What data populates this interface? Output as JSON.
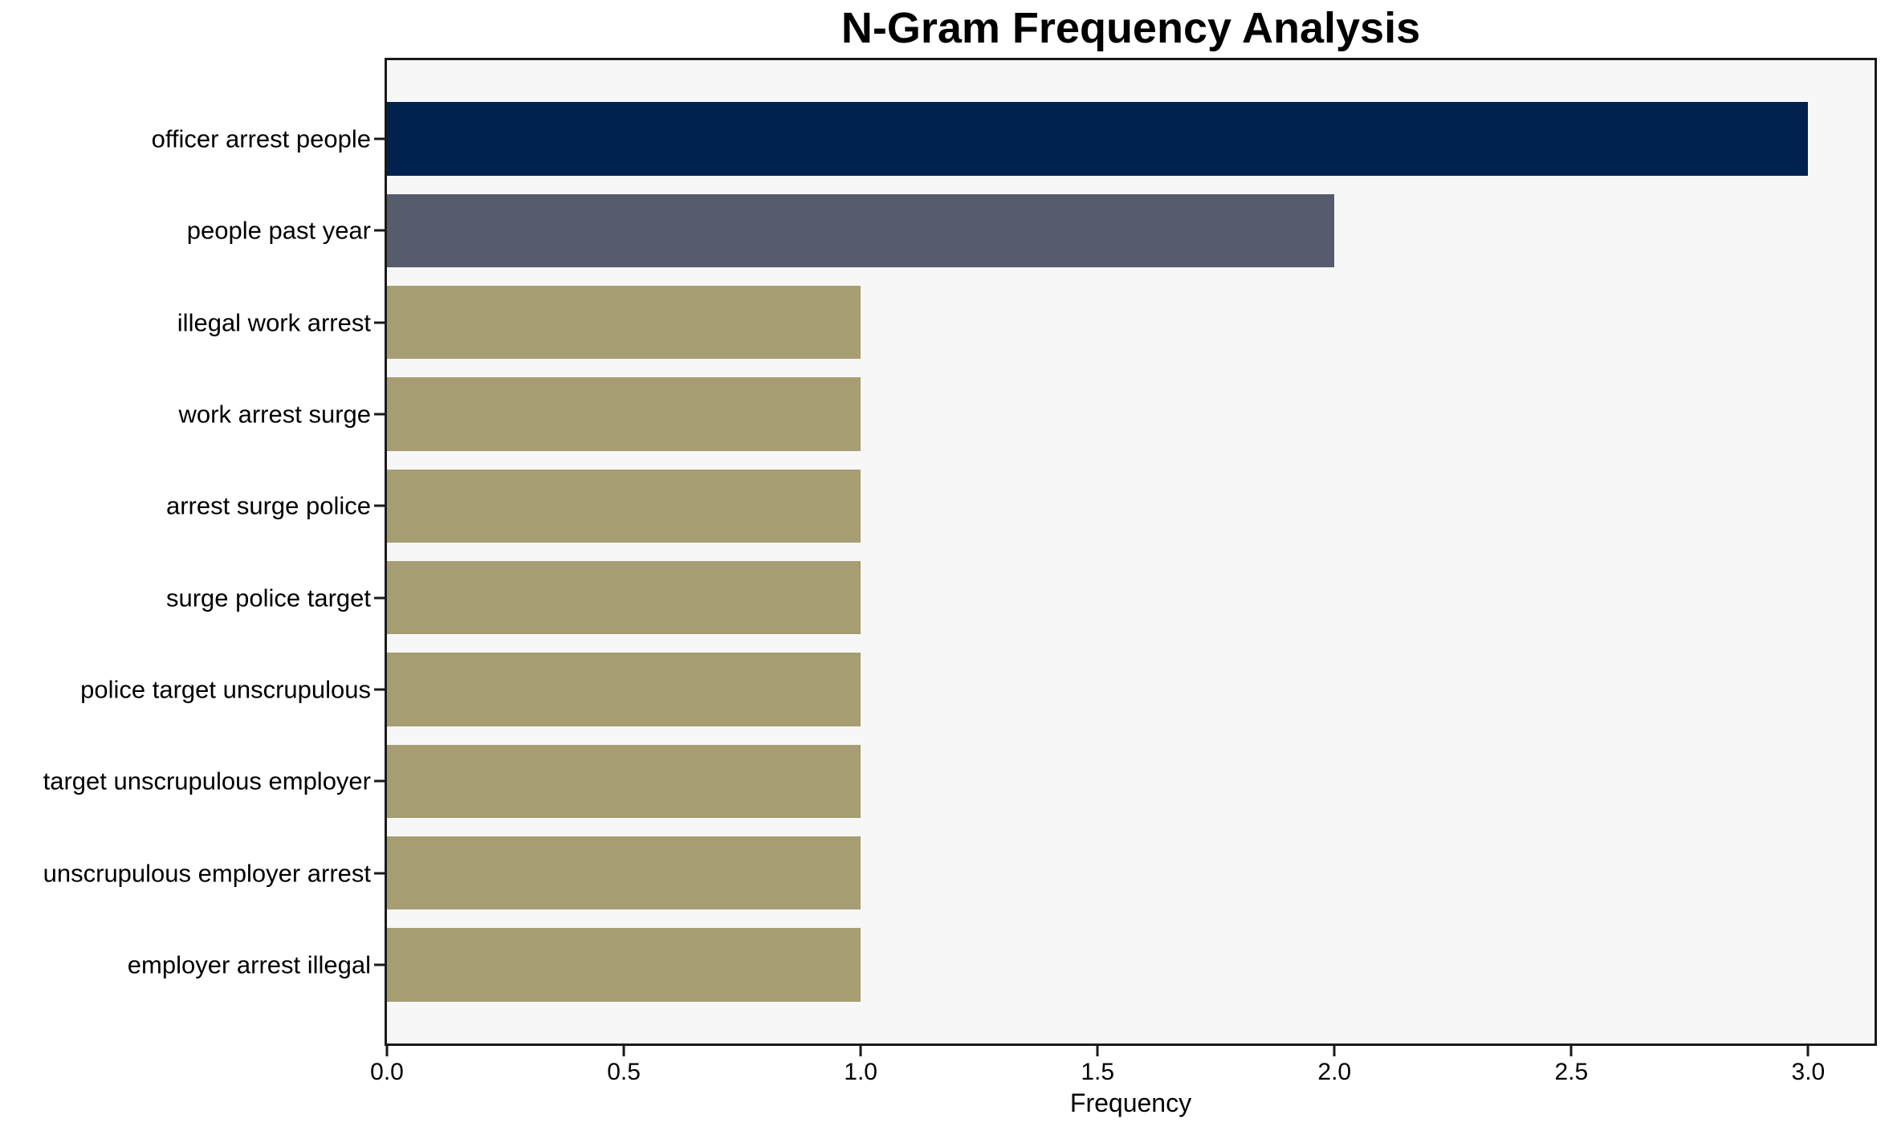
{
  "chart_data": {
    "type": "bar",
    "orientation": "horizontal",
    "title": "N-Gram Frequency Analysis",
    "xlabel": "Frequency",
    "ylabel": "",
    "categories": [
      "officer arrest people",
      "people past year",
      "illegal work arrest",
      "work arrest surge",
      "arrest surge police",
      "surge police target",
      "police target unscrupulous",
      "target unscrupulous employer",
      "unscrupulous employer arrest",
      "employer arrest illegal"
    ],
    "values": [
      3,
      2,
      1,
      1,
      1,
      1,
      1,
      1,
      1,
      1
    ],
    "xtick_labels": [
      "0.0",
      "0.5",
      "1.0",
      "1.5",
      "2.0",
      "2.5",
      "3.0"
    ],
    "xtick_values": [
      0,
      0.5,
      1,
      1.5,
      2,
      2.5,
      3
    ],
    "xlim": [
      0,
      3.14
    ],
    "grid": false,
    "legend_position": "none",
    "bar_colors": [
      "#01224E",
      "#565C6E",
      "#A69D72",
      "#A69D72",
      "#A69D72",
      "#A69D72",
      "#A69D72",
      "#A69D72",
      "#A69D72",
      "#A69D72"
    ],
    "colors": {
      "plot_background": "#F7F7F7",
      "figure_background": "#FFFFFF",
      "axis": "#1A1A1A",
      "text": "#000000"
    }
  }
}
